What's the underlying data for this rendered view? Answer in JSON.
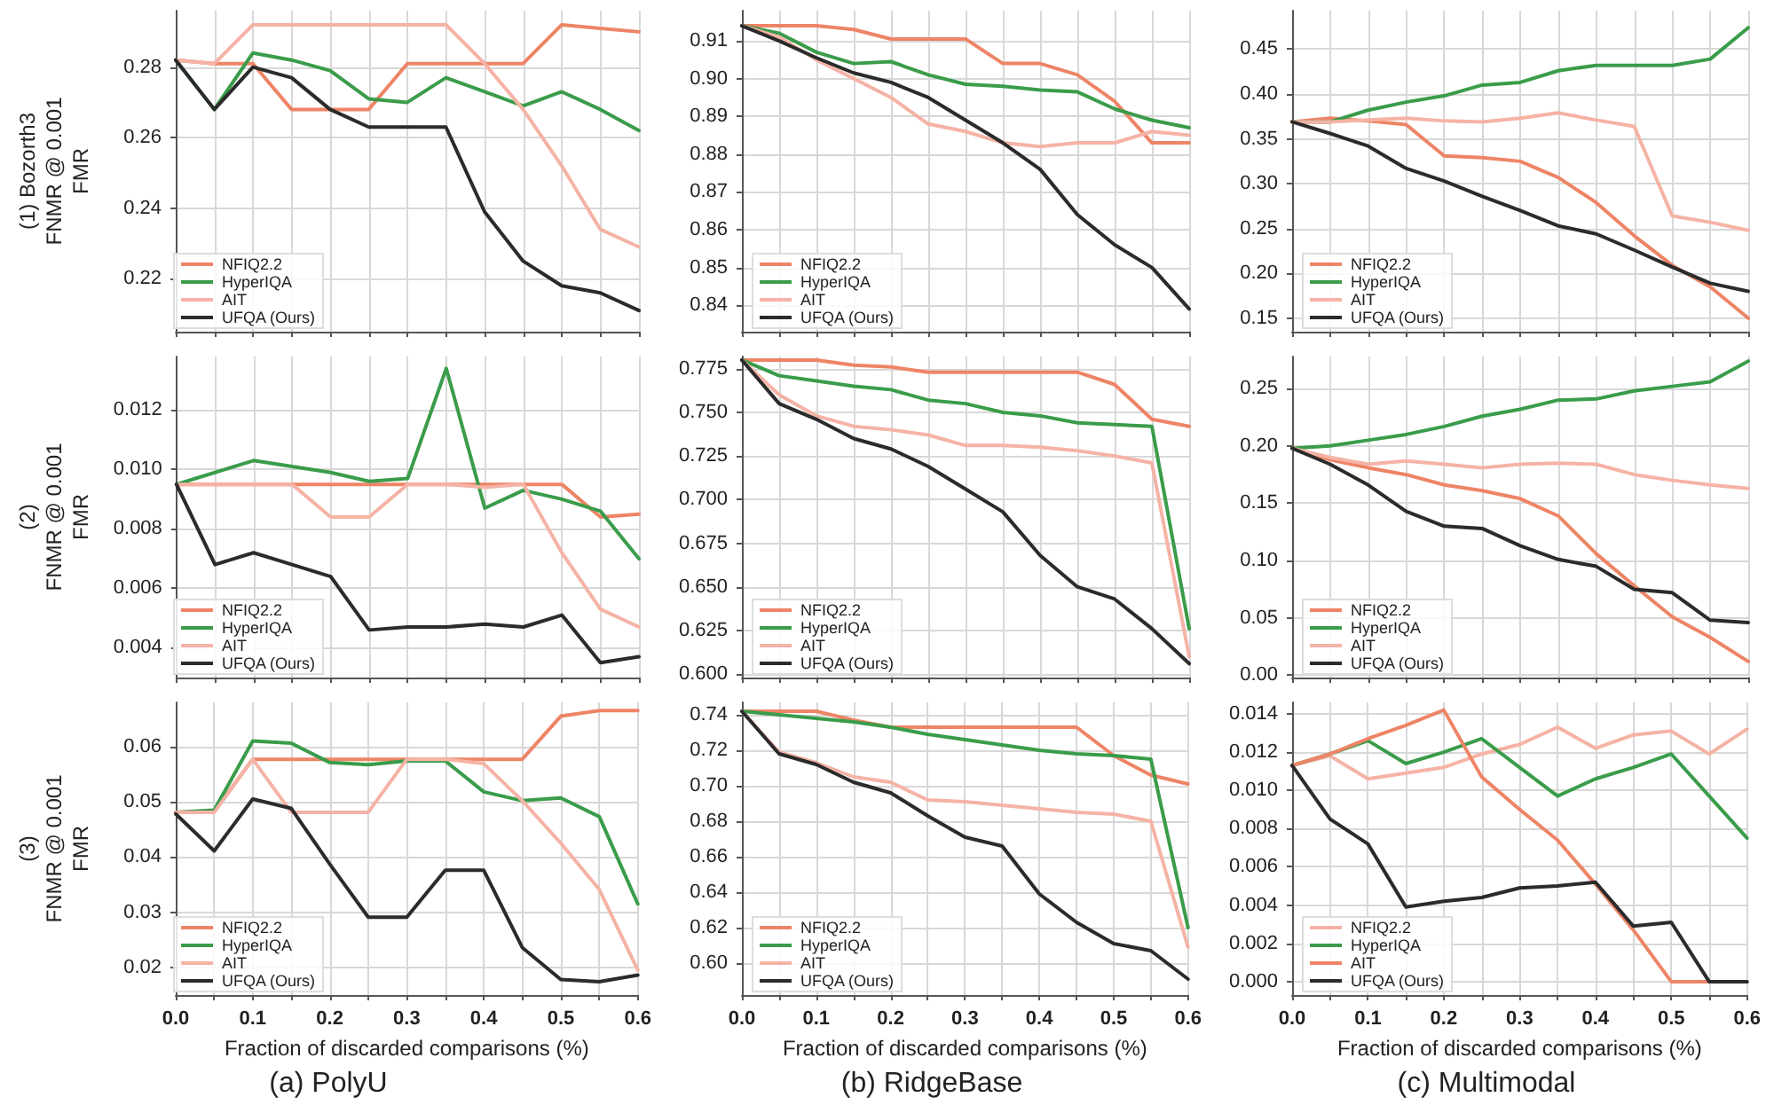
{
  "chart_data": [
    {
      "type": "line",
      "ylabel": "(1) Bozorth3\nFNMR @ 0.001\nFMR",
      "x": [
        0,
        0.05,
        0.1,
        0.15,
        0.2,
        0.25,
        0.3,
        0.35,
        0.4,
        0.45,
        0.5,
        0.55,
        0.6
      ],
      "xlim": [
        0,
        0.6
      ],
      "xticks": [
        {
          "value": 0,
          "label": null
        },
        {
          "value": 0.05,
          "label": null
        },
        {
          "value": 0.1,
          "label": null
        },
        {
          "value": 0.15,
          "label": null
        },
        {
          "value": 0.2,
          "label": null
        },
        {
          "value": 0.25,
          "label": null
        },
        {
          "value": 0.3,
          "label": null
        },
        {
          "value": 0.35,
          "label": null
        },
        {
          "value": 0.4,
          "label": null
        },
        {
          "value": 0.45,
          "label": null
        },
        {
          "value": 0.5,
          "label": null
        },
        {
          "value": 0.55,
          "label": null
        },
        {
          "value": 0.6,
          "label": null
        }
      ],
      "ylim": [
        0.205,
        0.296
      ],
      "yticks": [
        0.22,
        0.24,
        0.26,
        0.28
      ],
      "grid": true,
      "legend": "bottom left",
      "tick_labels": "y",
      "series": [
        {
          "name": "NFIQ2.2",
          "color": "#ee8466",
          "values": [
            0.282,
            0.281,
            0.281,
            0.268,
            0.268,
            0.268,
            0.281,
            0.281,
            0.281,
            0.281,
            0.292,
            0.291,
            0.29
          ]
        },
        {
          "name": "HyperIQA",
          "color": "#3a9c4a",
          "values": [
            0.282,
            0.268,
            0.284,
            0.282,
            0.279,
            0.271,
            0.27,
            0.277,
            0.273,
            0.269,
            0.273,
            0.268,
            0.262
          ]
        },
        {
          "name": "AIT",
          "color": "#f5b3a5",
          "values": [
            0.282,
            0.281,
            0.292,
            0.292,
            0.292,
            0.292,
            0.292,
            0.292,
            0.281,
            0.268,
            0.252,
            0.234,
            0.229
          ]
        },
        {
          "name": "UFQA (Ours)",
          "color": "#2b2b2b",
          "values": [
            0.282,
            0.268,
            0.28,
            0.277,
            0.268,
            0.263,
            0.263,
            0.263,
            0.239,
            0.225,
            0.218,
            0.216,
            0.211
          ]
        }
      ]
    },
    {
      "type": "line",
      "x": [
        0,
        0.05,
        0.1,
        0.15,
        0.2,
        0.25,
        0.3,
        0.35,
        0.4,
        0.45,
        0.5,
        0.55,
        0.6
      ],
      "xlim": [
        0,
        0.6
      ],
      "xticks": [
        {
          "value": 0,
          "label": null
        },
        {
          "value": 0.05,
          "label": null
        },
        {
          "value": 0.1,
          "label": null
        },
        {
          "value": 0.15,
          "label": null
        },
        {
          "value": 0.2,
          "label": null
        },
        {
          "value": 0.25,
          "label": null
        },
        {
          "value": 0.3,
          "label": null
        },
        {
          "value": 0.35,
          "label": null
        },
        {
          "value": 0.4,
          "label": null
        },
        {
          "value": 0.45,
          "label": null
        },
        {
          "value": 0.5,
          "label": null
        },
        {
          "value": 0.55,
          "label": null
        },
        {
          "value": 0.6,
          "label": null
        }
      ],
      "ylim": [
        0.833,
        0.918
      ],
      "yticks": [
        0.84,
        0.85,
        0.86,
        0.87,
        0.88,
        0.89,
        {
          "value": 0.9,
          "label": "0.90"
        },
        0.91
      ],
      "grid": true,
      "legend": "bottom left",
      "tick_labels": "y",
      "series": [
        {
          "name": "NFIQ2.2",
          "color": "#ee8466",
          "values": [
            0.914,
            0.914,
            0.914,
            0.913,
            0.9105,
            0.9105,
            0.9105,
            0.904,
            0.904,
            0.901,
            0.894,
            0.883,
            0.883
          ]
        },
        {
          "name": "HyperIQA",
          "color": "#3a9c4a",
          "values": [
            0.914,
            0.912,
            0.907,
            0.904,
            0.9045,
            0.901,
            0.8985,
            0.898,
            0.897,
            0.8965,
            0.892,
            0.889,
            0.887
          ]
        },
        {
          "name": "AIT",
          "color": "#f5b3a5",
          "values": [
            0.914,
            0.911,
            0.905,
            0.9,
            0.895,
            0.888,
            0.886,
            0.883,
            0.882,
            0.883,
            0.883,
            0.886,
            0.885
          ]
        },
        {
          "name": "UFQA (Ours)",
          "color": "#2b2b2b",
          "values": [
            0.914,
            0.91,
            0.9055,
            0.9015,
            0.899,
            0.895,
            0.889,
            0.883,
            0.876,
            0.864,
            0.856,
            0.85,
            0.839
          ]
        }
      ]
    },
    {
      "type": "line",
      "x": [
        0,
        0.05,
        0.1,
        0.15,
        0.2,
        0.25,
        0.3,
        0.35,
        0.4,
        0.45,
        0.5,
        0.55,
        0.6
      ],
      "xlim": [
        0,
        0.6
      ],
      "xticks": [
        {
          "value": 0,
          "label": null
        },
        {
          "value": 0.05,
          "label": null
        },
        {
          "value": 0.1,
          "label": null
        },
        {
          "value": 0.15,
          "label": null
        },
        {
          "value": 0.2,
          "label": null
        },
        {
          "value": 0.25,
          "label": null
        },
        {
          "value": 0.3,
          "label": null
        },
        {
          "value": 0.35,
          "label": null
        },
        {
          "value": 0.4,
          "label": null
        },
        {
          "value": 0.45,
          "label": null
        },
        {
          "value": 0.5,
          "label": null
        },
        {
          "value": 0.55,
          "label": null
        },
        {
          "value": 0.6,
          "label": null
        }
      ],
      "ylim": [
        0.135,
        0.493
      ],
      "yticks": [
        0.15,
        {
          "value": 0.2,
          "label": "0.20"
        },
        0.25,
        {
          "value": 0.3,
          "label": "0.30"
        },
        0.35,
        {
          "value": 0.4,
          "label": "0.40"
        },
        0.45
      ],
      "grid": true,
      "legend": "bottom left",
      "tick_labels": "y",
      "series": [
        {
          "name": "NFIQ2.2",
          "color": "#ee8466",
          "values": [
            0.369,
            0.373,
            0.37,
            0.366,
            0.331,
            0.329,
            0.325,
            0.307,
            0.279,
            0.242,
            0.209,
            0.185,
            0.15
          ]
        },
        {
          "name": "HyperIQA",
          "color": "#3a9c4a",
          "values": [
            0.369,
            0.369,
            0.382,
            0.391,
            0.398,
            0.41,
            0.413,
            0.426,
            0.432,
            0.432,
            0.432,
            0.439,
            0.474
          ]
        },
        {
          "name": "AIT",
          "color": "#f5b3a5",
          "values": [
            0.369,
            0.369,
            0.371,
            0.373,
            0.37,
            0.369,
            0.373,
            0.379,
            0.371,
            0.364,
            0.264,
            0.257,
            0.248
          ]
        },
        {
          "name": "UFQA (Ours)",
          "color": "#2b2b2b",
          "values": [
            0.369,
            0.356,
            0.342,
            0.317,
            0.303,
            0.286,
            0.27,
            0.253,
            0.244,
            0.226,
            0.207,
            0.189,
            0.18
          ]
        }
      ]
    },
    {
      "type": "line",
      "ylabel": "(2)\nFNMR @ 0.001\nFMR",
      "x": [
        0,
        0.05,
        0.1,
        0.15,
        0.2,
        0.25,
        0.3,
        0.35,
        0.4,
        0.45,
        0.5,
        0.55,
        0.6
      ],
      "xlim": [
        0,
        0.6
      ],
      "xticks": [
        {
          "value": 0,
          "label": null
        },
        {
          "value": 0.05,
          "label": null
        },
        {
          "value": 0.1,
          "label": null
        },
        {
          "value": 0.15,
          "label": null
        },
        {
          "value": 0.2,
          "label": null
        },
        {
          "value": 0.25,
          "label": null
        },
        {
          "value": 0.3,
          "label": null
        },
        {
          "value": 0.35,
          "label": null
        },
        {
          "value": 0.4,
          "label": null
        },
        {
          "value": 0.45,
          "label": null
        },
        {
          "value": 0.5,
          "label": null
        },
        {
          "value": 0.55,
          "label": null
        },
        {
          "value": 0.6,
          "label": null
        }
      ],
      "ylim": [
        0.003,
        0.0138
      ],
      "yticks": [
        0.004,
        0.006,
        0.008,
        {
          "value": 0.01,
          "label": "0.010"
        },
        0.012
      ],
      "grid": true,
      "legend": "bottom left",
      "tick_labels": "y",
      "series": [
        {
          "name": "NFIQ2.2",
          "color": "#ee8466",
          "values": [
            0.0095,
            0.0095,
            0.0095,
            0.0095,
            0.0095,
            0.0095,
            0.0095,
            0.0095,
            0.0095,
            0.0095,
            0.0095,
            0.0084,
            0.0085
          ]
        },
        {
          "name": "HyperIQA",
          "color": "#3a9c4a",
          "values": [
            0.0095,
            0.0099,
            0.0103,
            0.0101,
            0.0099,
            0.0096,
            0.0097,
            0.0134,
            0.0087,
            0.0093,
            0.009,
            0.0086,
            0.007
          ]
        },
        {
          "name": "AIT",
          "color": "#f5b3a5",
          "values": [
            0.0095,
            0.0095,
            0.0095,
            0.0095,
            0.0084,
            0.0084,
            0.0095,
            0.0095,
            0.0094,
            0.0095,
            0.0072,
            0.0053,
            0.0047
          ]
        },
        {
          "name": "UFQA (Ours)",
          "color": "#2b2b2b",
          "values": [
            0.0095,
            0.0068,
            0.0072,
            0.0068,
            0.0064,
            0.0046,
            0.0047,
            0.0047,
            0.0048,
            0.0047,
            0.0051,
            0.0035,
            0.0037
          ]
        }
      ]
    },
    {
      "type": "line",
      "x": [
        0,
        0.05,
        0.1,
        0.15,
        0.2,
        0.25,
        0.3,
        0.35,
        0.4,
        0.45,
        0.5,
        0.55,
        0.6
      ],
      "xlim": [
        0,
        0.6
      ],
      "xticks": [
        {
          "value": 0,
          "label": null
        },
        {
          "value": 0.05,
          "label": null
        },
        {
          "value": 0.1,
          "label": null
        },
        {
          "value": 0.15,
          "label": null
        },
        {
          "value": 0.2,
          "label": null
        },
        {
          "value": 0.25,
          "label": null
        },
        {
          "value": 0.3,
          "label": null
        },
        {
          "value": 0.35,
          "label": null
        },
        {
          "value": 0.4,
          "label": null
        },
        {
          "value": 0.45,
          "label": null
        },
        {
          "value": 0.5,
          "label": null
        },
        {
          "value": 0.55,
          "label": null
        },
        {
          "value": 0.6,
          "label": null
        }
      ],
      "ylim": [
        0.598,
        0.782
      ],
      "yticks": [
        {
          "value": 0.6,
          "label": "0.600"
        },
        0.625,
        {
          "value": 0.65,
          "label": "0.650"
        },
        0.675,
        {
          "value": 0.7,
          "label": "0.700"
        },
        0.725,
        {
          "value": 0.75,
          "label": "0.750"
        },
        0.775
      ],
      "grid": true,
      "legend": "bottom left",
      "tick_labels": "y",
      "series": [
        {
          "name": "NFIQ2.2",
          "color": "#ee8466",
          "values": [
            0.78,
            0.78,
            0.78,
            0.777,
            0.776,
            0.773,
            0.773,
            0.773,
            0.773,
            0.773,
            0.766,
            0.746,
            0.742
          ]
        },
        {
          "name": "HyperIQA",
          "color": "#3a9c4a",
          "values": [
            0.78,
            0.771,
            0.768,
            0.765,
            0.763,
            0.757,
            0.755,
            0.75,
            0.748,
            0.744,
            0.743,
            0.742,
            0.626
          ]
        },
        {
          "name": "AIT",
          "color": "#f5b3a5",
          "values": [
            0.78,
            0.76,
            0.748,
            0.742,
            0.74,
            0.737,
            0.731,
            0.731,
            0.73,
            0.728,
            0.725,
            0.721,
            0.61
          ]
        },
        {
          "name": "UFQA (Ours)",
          "color": "#2b2b2b",
          "values": [
            0.78,
            0.755,
            0.746,
            0.735,
            0.729,
            0.719,
            0.706,
            0.693,
            0.668,
            0.65,
            0.643,
            0.626,
            0.606
          ]
        }
      ]
    },
    {
      "type": "line",
      "x": [
        0,
        0.05,
        0.1,
        0.15,
        0.2,
        0.25,
        0.3,
        0.35,
        0.4,
        0.45,
        0.5,
        0.55,
        0.6
      ],
      "xlim": [
        0,
        0.6
      ],
      "xticks": [
        {
          "value": 0,
          "label": null
        },
        {
          "value": 0.05,
          "label": null
        },
        {
          "value": 0.1,
          "label": null
        },
        {
          "value": 0.15,
          "label": null
        },
        {
          "value": 0.2,
          "label": null
        },
        {
          "value": 0.25,
          "label": null
        },
        {
          "value": 0.3,
          "label": null
        },
        {
          "value": 0.35,
          "label": null
        },
        {
          "value": 0.4,
          "label": null
        },
        {
          "value": 0.45,
          "label": null
        },
        {
          "value": 0.5,
          "label": null
        },
        {
          "value": 0.55,
          "label": null
        },
        {
          "value": 0.6,
          "label": null
        }
      ],
      "ylim": [
        -0.002,
        0.278
      ],
      "yticks": [
        {
          "value": 0,
          "label": "0.00"
        },
        0.05,
        {
          "value": 0.1,
          "label": "0.10"
        },
        0.15,
        {
          "value": 0.2,
          "label": "0.20"
        },
        0.25
      ],
      "grid": true,
      "legend": "bottom left",
      "tick_labels": "y",
      "series": [
        {
          "name": "NFIQ2.2",
          "color": "#ee8466",
          "values": [
            0.198,
            0.188,
            0.181,
            0.175,
            0.166,
            0.161,
            0.154,
            0.139,
            0.106,
            0.078,
            0.051,
            0.033,
            0.012
          ]
        },
        {
          "name": "HyperIQA",
          "color": "#3a9c4a",
          "values": [
            0.198,
            0.2,
            0.205,
            0.21,
            0.217,
            0.226,
            0.232,
            0.24,
            0.241,
            0.248,
            0.252,
            0.256,
            0.274
          ]
        },
        {
          "name": "AIT",
          "color": "#f5b3a5",
          "values": [
            0.198,
            0.19,
            0.184,
            0.187,
            0.184,
            0.181,
            0.184,
            0.185,
            0.184,
            0.175,
            0.17,
            0.166,
            0.163
          ]
        },
        {
          "name": "UFQA (Ours)",
          "color": "#2b2b2b",
          "values": [
            0.198,
            0.184,
            0.166,
            0.143,
            0.13,
            0.128,
            0.113,
            0.101,
            0.095,
            0.075,
            0.072,
            0.048,
            0.046
          ]
        }
      ]
    },
    {
      "type": "line",
      "ylabel": "(3)\nFNMR @ 0.001\nFMR",
      "xlabel": "Fraction of discarded comparisons (%)",
      "annotations": [
        "(a) PolyU"
      ],
      "x": [
        0,
        0.05,
        0.1,
        0.15,
        0.2,
        0.25,
        0.3,
        0.35,
        0.4,
        0.45,
        0.5,
        0.55,
        0.6
      ],
      "xlim": [
        0,
        0.6
      ],
      "xticks": [
        {
          "value": 0,
          "label": "0.0"
        },
        {
          "value": 0.05,
          "label": null
        },
        0.1,
        {
          "value": 0.15,
          "label": null
        },
        0.2,
        {
          "value": 0.25,
          "label": null
        },
        0.3,
        {
          "value": 0.35,
          "label": null
        },
        0.4,
        {
          "value": 0.45,
          "label": null
        },
        0.5,
        {
          "value": 0.55,
          "label": null
        },
        0.6
      ],
      "ylim": [
        0.015,
        0.068
      ],
      "yticks": [
        0.02,
        0.03,
        0.04,
        0.05,
        0.06
      ],
      "grid": true,
      "legend": "bottom left",
      "series": [
        {
          "name": "NFIQ2.2",
          "color": "#ee8466",
          "values": [
            0.0481,
            0.0483,
            0.0577,
            0.0577,
            0.0577,
            0.0577,
            0.0577,
            0.0577,
            0.0577,
            0.0577,
            0.0655,
            0.0665,
            0.0665
          ]
        },
        {
          "name": "HyperIQA",
          "color": "#3a9c4a",
          "values": [
            0.0481,
            0.0485,
            0.061,
            0.0606,
            0.0571,
            0.0567,
            0.0574,
            0.0574,
            0.0518,
            0.0502,
            0.0507,
            0.0473,
            0.0315
          ]
        },
        {
          "name": "AIT",
          "color": "#f5b3a5",
          "values": [
            0.0481,
            0.0481,
            0.0577,
            0.0481,
            0.0481,
            0.0481,
            0.0577,
            0.0577,
            0.0569,
            0.0502,
            0.0425,
            0.0341,
            0.0195
          ]
        },
        {
          "name": "UFQA (Ours)",
          "color": "#2b2b2b",
          "values": [
            0.0478,
            0.0411,
            0.0505,
            0.0488,
            0.0387,
            0.0291,
            0.0291,
            0.0376,
            0.0376,
            0.0236,
            0.0178,
            0.0174,
            0.0186
          ]
        }
      ]
    },
    {
      "type": "line",
      "xlabel": "Fraction of discarded comparisons (%)",
      "annotations": [
        "(b) RidgeBase"
      ],
      "x": [
        0,
        0.05,
        0.1,
        0.15,
        0.2,
        0.25,
        0.3,
        0.35,
        0.4,
        0.45,
        0.5,
        0.55,
        0.6
      ],
      "xlim": [
        0,
        0.6
      ],
      "xticks": [
        {
          "value": 0,
          "label": "0.0"
        },
        {
          "value": 0.05,
          "label": null
        },
        0.1,
        {
          "value": 0.15,
          "label": null
        },
        0.2,
        {
          "value": 0.25,
          "label": null
        },
        0.3,
        {
          "value": 0.35,
          "label": null
        },
        0.4,
        {
          "value": 0.45,
          "label": null
        },
        0.5,
        {
          "value": 0.55,
          "label": null
        },
        0.6
      ],
      "ylim": [
        0.582,
        0.747
      ],
      "yticks": [
        {
          "value": 0.6,
          "label": "0.60"
        },
        0.62,
        0.64,
        0.66,
        0.68,
        {
          "value": 0.7,
          "label": "0.70"
        },
        0.72,
        0.74
      ],
      "grid": true,
      "legend": "bottom left",
      "series": [
        {
          "name": "NFIQ2.2",
          "color": "#ee8466",
          "values": [
            0.742,
            0.742,
            0.742,
            0.737,
            0.733,
            0.733,
            0.733,
            0.733,
            0.733,
            0.733,
            0.717,
            0.706,
            0.701
          ]
        },
        {
          "name": "HyperIQA",
          "color": "#3a9c4a",
          "values": [
            0.742,
            0.74,
            0.738,
            0.736,
            0.733,
            0.729,
            0.726,
            0.723,
            0.72,
            0.718,
            0.717,
            0.715,
            0.62
          ]
        },
        {
          "name": "AIT",
          "color": "#f5b3a5",
          "values": [
            0.742,
            0.719,
            0.713,
            0.705,
            0.702,
            0.692,
            0.691,
            0.689,
            0.687,
            0.685,
            0.684,
            0.68,
            0.609
          ]
        },
        {
          "name": "UFQA (Ours)",
          "color": "#2b2b2b",
          "values": [
            0.742,
            0.718,
            0.712,
            0.702,
            0.696,
            0.683,
            0.671,
            0.666,
            0.639,
            0.623,
            0.611,
            0.607,
            0.591
          ]
        }
      ]
    },
    {
      "type": "line",
      "xlabel": "Fraction of discarded comparisons (%)",
      "annotations": [
        "(c) Multimodal"
      ],
      "x": [
        0,
        0.05,
        0.1,
        0.15,
        0.2,
        0.25,
        0.3,
        0.35,
        0.4,
        0.45,
        0.5,
        0.55,
        0.6
      ],
      "xlim": [
        0,
        0.6
      ],
      "xticks": [
        {
          "value": 0,
          "label": "0.0"
        },
        {
          "value": 0.05,
          "label": null
        },
        0.1,
        {
          "value": 0.15,
          "label": null
        },
        0.2,
        {
          "value": 0.25,
          "label": null
        },
        0.3,
        {
          "value": 0.35,
          "label": null
        },
        0.4,
        {
          "value": 0.45,
          "label": null
        },
        0.5,
        {
          "value": 0.55,
          "label": null
        },
        0.6
      ],
      "ylim": [
        -0.0007,
        0.0146
      ],
      "yticks": [
        {
          "value": 0,
          "label": "0.000"
        },
        0.002,
        0.004,
        0.006,
        0.008,
        {
          "value": 0.01,
          "label": "0.010"
        },
        0.012,
        0.014
      ],
      "grid": true,
      "legend": "bottom left",
      "series": [
        {
          "name": "NFIQ2.2",
          "color": "#f5b3a5",
          "values": [
            0.0113,
            0.0118,
            0.0106,
            0.0109,
            0.0112,
            0.0119,
            0.0124,
            0.0133,
            0.0122,
            0.0129,
            0.0131,
            0.0119,
            0.0132
          ]
        },
        {
          "name": "HyperIQA",
          "color": "#3a9c4a",
          "values": [
            0.0113,
            0.0119,
            0.0126,
            0.0114,
            0.012,
            0.0127,
            0.0112,
            0.0097,
            0.0106,
            0.0112,
            0.0119,
            0.0097,
            0.0075
          ]
        },
        {
          "name": "AIT",
          "color": "#ee8466",
          "values": [
            0.0113,
            0.0119,
            0.0127,
            0.0134,
            0.0142,
            0.0107,
            0.009,
            0.0074,
            0.0051,
            0.0027,
            0,
            0,
            0
          ]
        },
        {
          "name": "UFQA (Ours)",
          "color": "#2b2b2b",
          "values": [
            0.0113,
            0.0085,
            0.0072,
            0.0039,
            0.0042,
            0.0044,
            0.0049,
            0.005,
            0.0052,
            0.0029,
            0.0031,
            0,
            0
          ]
        }
      ]
    }
  ]
}
